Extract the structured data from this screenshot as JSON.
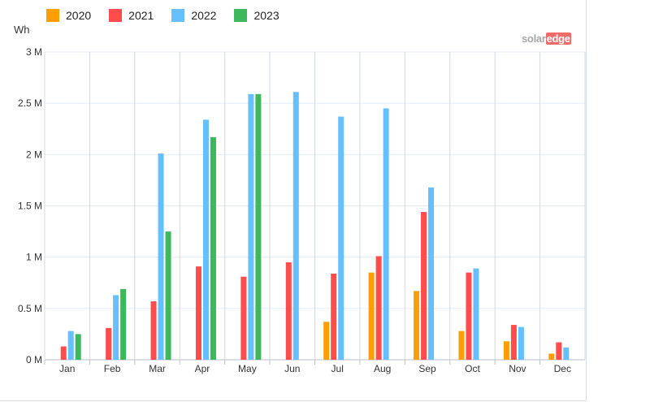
{
  "chart_data": {
    "type": "bar",
    "ylabel": "Wh",
    "ylim": [
      0,
      3000000
    ],
    "yticks": [
      {
        "value": 0,
        "label": "0 M"
      },
      {
        "value": 500000,
        "label": "0.5 M"
      },
      {
        "value": 1000000,
        "label": "1 M"
      },
      {
        "value": 1500000,
        "label": "1.5 M"
      },
      {
        "value": 2000000,
        "label": "2 M"
      },
      {
        "value": 2500000,
        "label": "2.5 M"
      },
      {
        "value": 3000000,
        "label": "3 M"
      }
    ],
    "categories": [
      "Jan",
      "Feb",
      "Mar",
      "Apr",
      "May",
      "Jun",
      "Jul",
      "Aug",
      "Sep",
      "Oct",
      "Nov",
      "Dec"
    ],
    "legend_position": "top-left",
    "grid": true,
    "series": [
      {
        "name": "2020",
        "color": "#ff9e00",
        "values": [
          null,
          null,
          null,
          null,
          null,
          null,
          370000,
          850000,
          670000,
          280000,
          180000,
          60000
        ]
      },
      {
        "name": "2021",
        "color": "#ff4d4d",
        "values": [
          130000,
          310000,
          570000,
          910000,
          810000,
          950000,
          840000,
          1010000,
          1440000,
          850000,
          340000,
          170000
        ]
      },
      {
        "name": "2022",
        "color": "#66bfff",
        "values": [
          280000,
          630000,
          2010000,
          2340000,
          2590000,
          2610000,
          2370000,
          2450000,
          1680000,
          890000,
          320000,
          120000
        ]
      },
      {
        "name": "2023",
        "color": "#3db85c",
        "values": [
          250000,
          690000,
          1250000,
          2170000,
          2590000,
          null,
          null,
          null,
          null,
          null,
          null,
          null
        ]
      }
    ]
  },
  "logo": {
    "part1": "solar",
    "part2": "edge"
  }
}
